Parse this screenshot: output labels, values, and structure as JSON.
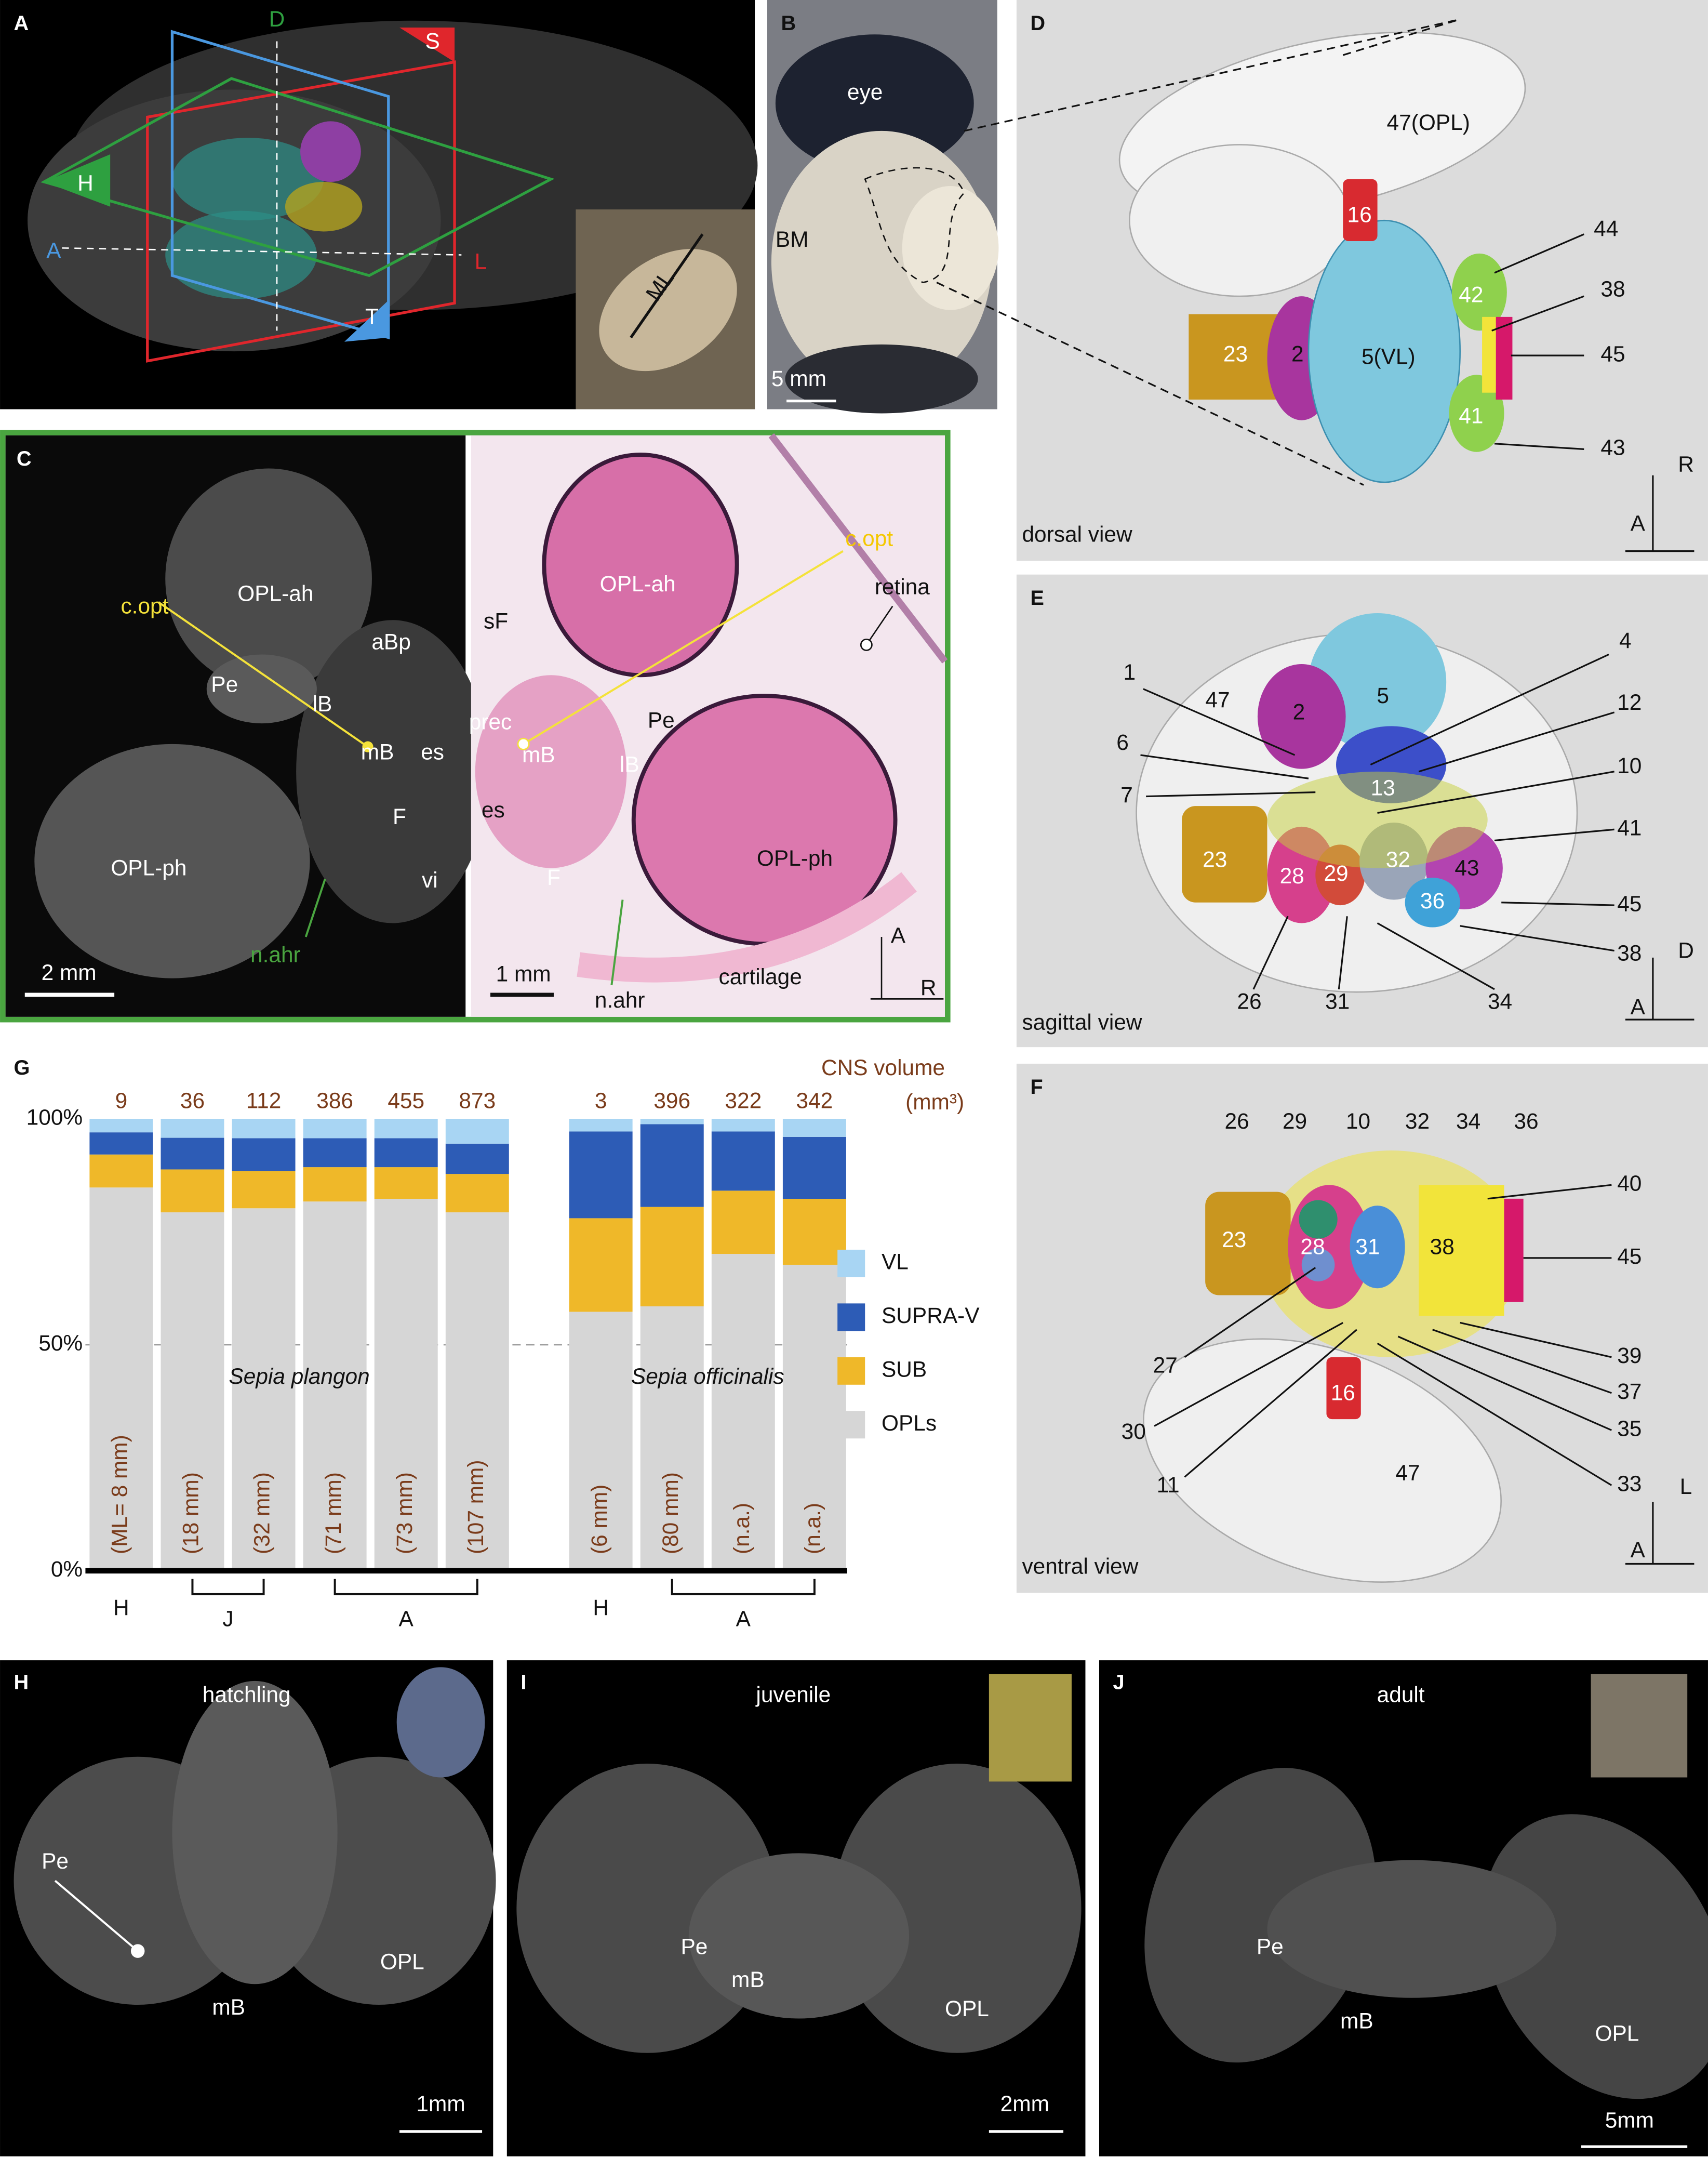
{
  "panels": {
    "a": {
      "letter": "A",
      "texts": [
        "D",
        "S",
        "H",
        "A",
        "L",
        "T",
        "ML"
      ]
    },
    "b": {
      "letter": "B",
      "texts": [
        "eye",
        "BM",
        "5 mm"
      ]
    },
    "c": {
      "letter": "C",
      "left": [
        "c.opt",
        "OPL-ah",
        "aBp",
        "Pe",
        "lB",
        "mB",
        "es",
        "F",
        "OPL-ph",
        "vi",
        "n.ahr",
        "2 mm"
      ],
      "right": [
        "sF",
        "OPL-ah",
        "c.opt",
        "retina",
        "prec",
        "Pe",
        "mB",
        "lB",
        "es",
        "OPL-ph",
        "F",
        "n.ahr",
        "1 mm",
        "cartilage",
        "A",
        "R"
      ]
    },
    "d": {
      "letter": "D",
      "texts": [
        "47(OPL)",
        "16",
        "44",
        "42",
        "38",
        "45",
        "23",
        "2",
        "5(VL)",
        "41",
        "43",
        "dorsal view",
        "R",
        "A"
      ]
    },
    "e": {
      "letter": "E",
      "texts": [
        "47",
        "5",
        "2",
        "1",
        "4",
        "12",
        "6",
        "10",
        "7",
        "13",
        "41",
        "23",
        "28",
        "29",
        "32",
        "43",
        "36",
        "45",
        "38",
        "26",
        "31",
        "34",
        "sagittal view",
        "D",
        "A"
      ]
    },
    "f": {
      "letter": "F",
      "texts": [
        "26",
        "29",
        "10",
        "32",
        "34",
        "36",
        "40",
        "23",
        "28",
        "31",
        "38",
        "45",
        "27",
        "39",
        "37",
        "30",
        "35",
        "11",
        "16",
        "33",
        "47",
        "ventral view",
        "L",
        "A"
      ]
    },
    "h": {
      "letter": "H",
      "texts": [
        "hatchling",
        "Pe",
        "mB",
        "OPL",
        "1mm"
      ]
    },
    "i": {
      "letter": "I",
      "texts": [
        "juvenile",
        "Pe",
        "mB",
        "OPL",
        "2mm"
      ]
    },
    "j": {
      "letter": "J",
      "texts": [
        "adult",
        "Pe",
        "mB",
        "OPL",
        "5mm"
      ]
    }
  },
  "chart_data": {
    "type": "stacked_bar",
    "panel": "G",
    "value_title": [
      "CNS volume",
      "(mm³)"
    ],
    "categories": [
      "(ML= 8 mm)",
      "(18 mm)",
      "(32 mm)",
      "(71 mm)",
      "(73 mm)",
      "(107 mm)",
      "(6 mm)",
      "(80 mm)",
      "(n.a.)",
      "(n.a.)"
    ],
    "cns_volume": [
      9,
      36,
      112,
      386,
      455,
      873,
      3,
      396,
      322,
      342
    ],
    "species": [
      "Sepia plangon",
      "Sepia officinalis"
    ],
    "groups": [
      "H",
      "J",
      "A",
      "H",
      "A"
    ],
    "series": [
      {
        "name": "VL",
        "color": "#a8d5f3",
        "values": [
          3.0,
          4.2,
          4.3,
          4.3,
          4.3,
          5.5,
          2.8,
          1.2,
          2.8,
          4.0
        ]
      },
      {
        "name": "SUPRA-V",
        "color": "#2d5cb6",
        "values": [
          4.9,
          7.0,
          7.3,
          6.4,
          6.4,
          6.7,
          19.2,
          18.3,
          13.1,
          13.7
        ]
      },
      {
        "name": "SUB",
        "color": "#efb829",
        "values": [
          7.3,
          9.5,
          8.2,
          7.6,
          7.0,
          8.5,
          20.7,
          22.0,
          14.0,
          14.6
        ]
      },
      {
        "name": "OPLs",
        "color": "#d6d6d6",
        "values": [
          84.8,
          79.3,
          80.2,
          81.7,
          82.3,
          79.3,
          57.3,
          58.5,
          70.1,
          67.7
        ]
      }
    ],
    "ylim": [
      0,
      100
    ],
    "yticks": [
      {
        "value": 0,
        "label": "0%"
      },
      {
        "value": 50,
        "label": "50%"
      },
      {
        "value": 100,
        "label": "100%"
      }
    ],
    "grid": "dashed at 50"
  }
}
